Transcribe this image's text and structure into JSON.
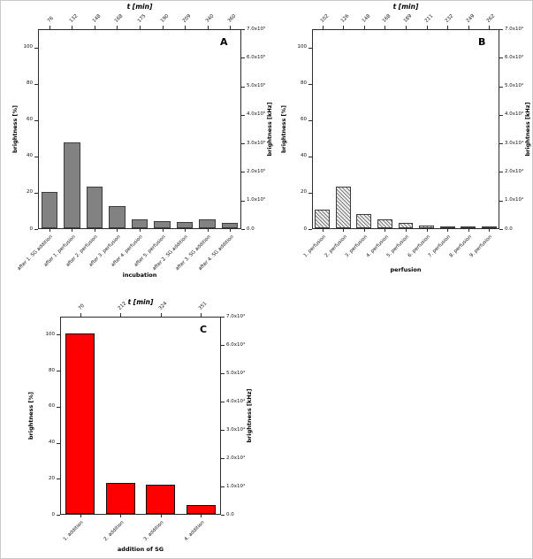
{
  "page": {
    "background": "#ffffff"
  },
  "chart_data": [
    {
      "type": "bar",
      "panel": "A",
      "title": "t [min]",
      "xlabel": "incubation",
      "ylabel_left": "brightness [%]",
      "ylabel_right": "brightness [kHz]",
      "categories": [
        "after 1. SG addition",
        "after 1. perfusion",
        "after 2. perfusion",
        "after 3. perfusion",
        "after 4. perfusion",
        "after 5. perfusion",
        "after 2. SG addition",
        "after 3. SG addition",
        "after 4. SG addition"
      ],
      "top_tick_labels": [
        "76",
        "132",
        "148",
        "168",
        "175",
        "190",
        "209",
        "340",
        "360"
      ],
      "values": [
        20,
        47,
        23,
        12,
        5,
        4,
        3.5,
        5,
        3
      ],
      "ylim_left": [
        0,
        110
      ],
      "left_ticks": [
        0,
        20,
        40,
        60,
        80,
        100
      ],
      "right_tick_labels": [
        "7.0x10⁵",
        "6.0x10⁵",
        "5.0x10⁵",
        "4.0x10⁵",
        "3.0x10⁵",
        "2.0x10⁵",
        "1.0x10⁵",
        "0.0"
      ],
      "bar_color": "#828282",
      "bar_border": "#3c3c3c",
      "hatch": false
    },
    {
      "type": "bar",
      "panel": "B",
      "title": "t [min]",
      "xlabel": "perfusion",
      "ylabel_left": "brightness [%]",
      "ylabel_right": "brightness [kHz]",
      "categories": [
        "1. perfusion",
        "2. perfusion",
        "3. perfusion",
        "4. perfusion",
        "5. perfusion",
        "6. perfusion",
        "7. perfusion",
        "8. perfusion",
        "9. perfusion"
      ],
      "top_tick_labels": [
        "102",
        "126",
        "148",
        "168",
        "189",
        "211",
        "232",
        "249",
        "262"
      ],
      "values": [
        10,
        23,
        8,
        5,
        3,
        1.5,
        1,
        1,
        0.8
      ],
      "ylim_left": [
        0,
        110
      ],
      "left_ticks": [
        0,
        20,
        40,
        60,
        80,
        100
      ],
      "right_tick_labels": [
        "7.0x10⁴",
        "6.0x10⁴",
        "5.0x10⁴",
        "4.0x10⁴",
        "3.0x10⁴",
        "2.0x10⁴",
        "1.0x10⁴",
        "0.0"
      ],
      "bar_color": "#ebebeb",
      "bar_border": "#3c3c3c",
      "hatch": true
    },
    {
      "type": "bar",
      "panel": "C",
      "title": "t [min]",
      "xlabel": "addition of SG",
      "ylabel_left": "brightness [%]",
      "ylabel_right": "brightness [kHz]",
      "categories": [
        "1. addition",
        "2. addition",
        "3. addition",
        "4. addition"
      ],
      "top_tick_labels": [
        "70",
        "212",
        "324",
        "351"
      ],
      "values": [
        100,
        17,
        16,
        5
      ],
      "ylim_left": [
        0,
        110
      ],
      "left_ticks": [
        0,
        20,
        40,
        60,
        80,
        100
      ],
      "right_tick_labels": [
        "7.0x10⁴",
        "6.0x10⁴",
        "5.0x10⁴",
        "4.0x10⁴",
        "3.0x10⁴",
        "2.0x10⁴",
        "1.0x10⁴",
        "0.0"
      ],
      "bar_color": "#ff0000",
      "bar_border": "#111111",
      "hatch": false
    }
  ]
}
